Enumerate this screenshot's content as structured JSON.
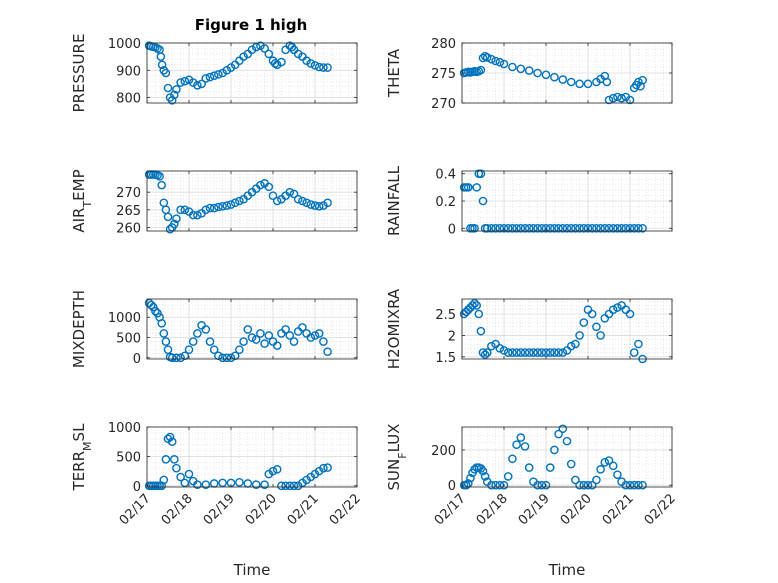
{
  "figure": {
    "title": "Figure 1 high"
  },
  "chart_data": [
    {
      "type": "scatter",
      "title": "Figure 1 high",
      "ylabel": "PRESSURE",
      "xlabel": "",
      "ylim": [
        780,
        1000
      ],
      "yticks": [
        "800",
        "900",
        "1000"
      ],
      "ytick_values": [
        800,
        900,
        1000
      ],
      "xlim": [
        0,
        5
      ],
      "grid": true,
      "marker": "circle",
      "color": "#0072BD",
      "x": [
        0.05,
        0.1,
        0.15,
        0.2,
        0.25,
        0.3,
        0.33,
        0.36,
        0.4,
        0.45,
        0.5,
        0.55,
        0.6,
        0.65,
        0.7,
        0.8,
        0.9,
        1.0,
        1.1,
        1.2,
        1.3,
        1.4,
        1.5,
        1.6,
        1.7,
        1.8,
        1.9,
        2.0,
        2.1,
        2.2,
        2.3,
        2.4,
        2.5,
        2.6,
        2.7,
        2.8,
        2.9,
        3.0,
        3.05,
        3.1,
        3.2,
        3.3,
        3.4,
        3.45,
        3.5,
        3.6,
        3.7,
        3.8,
        3.9,
        4.0,
        4.1,
        4.2,
        4.3
      ],
      "y": [
        990,
        988,
        986,
        984,
        980,
        975,
        950,
        920,
        900,
        890,
        835,
        800,
        790,
        810,
        830,
        855,
        860,
        865,
        855,
        845,
        850,
        870,
        875,
        880,
        885,
        890,
        900,
        910,
        920,
        935,
        950,
        960,
        975,
        985,
        990,
        980,
        960,
        935,
        925,
        920,
        930,
        975,
        990,
        985,
        975,
        960,
        950,
        935,
        925,
        918,
        912,
        910,
        910
      ]
    },
    {
      "type": "scatter",
      "ylabel": "THETA",
      "xlabel": "",
      "ylim": [
        270,
        280
      ],
      "yticks": [
        "270",
        "275",
        "280"
      ],
      "ytick_values": [
        270,
        275,
        280
      ],
      "xlim": [
        0,
        5
      ],
      "grid": true,
      "marker": "circle",
      "color": "#0072BD",
      "x": [
        0.05,
        0.1,
        0.15,
        0.2,
        0.25,
        0.3,
        0.35,
        0.4,
        0.45,
        0.5,
        0.55,
        0.6,
        0.7,
        0.8,
        0.9,
        1.0,
        1.2,
        1.4,
        1.6,
        1.8,
        2.0,
        2.2,
        2.4,
        2.6,
        2.8,
        3.0,
        3.2,
        3.3,
        3.4,
        3.45,
        3.5,
        3.6,
        3.7,
        3.8,
        3.9,
        4.0,
        4.1,
        4.15,
        4.2,
        4.25,
        4.3
      ],
      "y": [
        275,
        275.1,
        275.2,
        275.1,
        275.2,
        275.3,
        275.2,
        275.3,
        275.5,
        277.5,
        277.8,
        277.6,
        277.3,
        277,
        276.8,
        276.5,
        276,
        275.7,
        275.4,
        275,
        274.7,
        274.3,
        273.9,
        273.5,
        273.2,
        273.2,
        273.5,
        274,
        274.5,
        273.5,
        270.5,
        270.8,
        271,
        270.8,
        271,
        270.5,
        272.5,
        273,
        273.5,
        272.8,
        273.8
      ]
    },
    {
      "type": "scatter",
      "ylabel": "AIR_TEMP",
      "xlabel": "",
      "ylim": [
        259,
        276
      ],
      "yticks": [
        "260",
        "265",
        "270"
      ],
      "ytick_values": [
        260,
        265,
        270
      ],
      "xlim": [
        0,
        5
      ],
      "grid": true,
      "marker": "circle",
      "color": "#0072BD",
      "x": [
        0.05,
        0.1,
        0.15,
        0.2,
        0.25,
        0.3,
        0.35,
        0.4,
        0.45,
        0.5,
        0.55,
        0.6,
        0.65,
        0.7,
        0.8,
        0.9,
        1.0,
        1.1,
        1.2,
        1.3,
        1.4,
        1.5,
        1.6,
        1.7,
        1.8,
        1.9,
        2.0,
        2.1,
        2.2,
        2.3,
        2.4,
        2.5,
        2.6,
        2.7,
        2.8,
        2.9,
        3.0,
        3.1,
        3.2,
        3.3,
        3.4,
        3.5,
        3.6,
        3.7,
        3.8,
        3.9,
        4.0,
        4.1,
        4.2,
        4.3
      ],
      "y": [
        275,
        275,
        275,
        275,
        274.8,
        274.5,
        272,
        267,
        265,
        263,
        259.5,
        260,
        261,
        262.5,
        265,
        265,
        264.5,
        263.5,
        263.5,
        264,
        265,
        265.5,
        265.5,
        265.8,
        266,
        266.2,
        266.5,
        267,
        267.5,
        268,
        269,
        270,
        271,
        272,
        272.5,
        271.5,
        269,
        267.5,
        268,
        269,
        270,
        269.5,
        268,
        267.5,
        267,
        266.5,
        266.2,
        266,
        266.2,
        267
      ]
    },
    {
      "type": "scatter",
      "ylabel": "RAINFALL",
      "xlabel": "",
      "ylim": [
        -0.02,
        0.42
      ],
      "yticks": [
        "0",
        "0.2",
        "0.4"
      ],
      "ytick_values": [
        0,
        0.2,
        0.4
      ],
      "xlim": [
        0,
        5
      ],
      "grid": true,
      "marker": "circle",
      "color": "#0072BD",
      "x": [
        0.05,
        0.1,
        0.15,
        0.2,
        0.25,
        0.3,
        0.35,
        0.4,
        0.45,
        0.5,
        0.55,
        0.6,
        0.7,
        0.8,
        0.9,
        1.0,
        1.1,
        1.2,
        1.3,
        1.4,
        1.5,
        1.6,
        1.7,
        1.8,
        1.9,
        2.0,
        2.1,
        2.2,
        2.3,
        2.4,
        2.5,
        2.6,
        2.7,
        2.8,
        2.9,
        3.0,
        3.1,
        3.2,
        3.3,
        3.4,
        3.5,
        3.6,
        3.7,
        3.8,
        3.9,
        4.0,
        4.1,
        4.2,
        4.3
      ],
      "y": [
        0.3,
        0.3,
        0.3,
        0,
        0,
        0,
        0.3,
        0.4,
        0.4,
        0.2,
        0,
        0,
        0,
        0,
        0,
        0,
        0,
        0,
        0,
        0,
        0,
        0,
        0,
        0,
        0,
        0,
        0,
        0,
        0,
        0,
        0,
        0,
        0,
        0,
        0,
        0,
        0,
        0,
        0,
        0,
        0,
        0,
        0,
        0,
        0,
        0,
        0,
        0,
        0
      ]
    },
    {
      "type": "scatter",
      "ylabel": "MIXDEPTH",
      "xlabel": "",
      "ylim": [
        -30,
        1450
      ],
      "yticks": [
        "0",
        "500",
        "1000"
      ],
      "ytick_values": [
        0,
        500,
        1000
      ],
      "xlim": [
        0,
        5
      ],
      "grid": true,
      "marker": "circle",
      "color": "#0072BD",
      "x": [
        0.05,
        0.1,
        0.15,
        0.2,
        0.25,
        0.3,
        0.35,
        0.4,
        0.45,
        0.5,
        0.55,
        0.6,
        0.7,
        0.8,
        0.9,
        1.0,
        1.1,
        1.2,
        1.3,
        1.4,
        1.5,
        1.6,
        1.7,
        1.8,
        1.9,
        2.0,
        2.1,
        2.2,
        2.3,
        2.4,
        2.5,
        2.6,
        2.7,
        2.8,
        2.9,
        3.0,
        3.1,
        3.2,
        3.3,
        3.4,
        3.5,
        3.6,
        3.7,
        3.8,
        3.9,
        4.0,
        4.1,
        4.2,
        4.3
      ],
      "y": [
        1350,
        1300,
        1250,
        1150,
        1100,
        1000,
        850,
        600,
        400,
        200,
        20,
        0,
        0,
        0,
        50,
        200,
        400,
        600,
        800,
        700,
        400,
        200,
        50,
        0,
        0,
        0,
        50,
        200,
        400,
        700,
        500,
        450,
        600,
        350,
        550,
        400,
        300,
        600,
        700,
        550,
        400,
        650,
        750,
        600,
        500,
        550,
        600,
        400,
        150
      ]
    },
    {
      "type": "scatter",
      "ylabel": "H2OMIXRA",
      "xlabel": "",
      "ylim": [
        1.45,
        2.85
      ],
      "yticks": [
        "1.5",
        "2",
        "2.5"
      ],
      "ytick_values": [
        1.5,
        2,
        2.5
      ],
      "xlim": [
        0,
        5
      ],
      "grid": true,
      "marker": "circle",
      "color": "#0072BD",
      "x": [
        0.05,
        0.1,
        0.15,
        0.2,
        0.25,
        0.3,
        0.35,
        0.4,
        0.45,
        0.5,
        0.55,
        0.6,
        0.7,
        0.8,
        0.9,
        1.0,
        1.1,
        1.2,
        1.3,
        1.4,
        1.5,
        1.6,
        1.7,
        1.8,
        1.9,
        2.0,
        2.1,
        2.2,
        2.3,
        2.4,
        2.5,
        2.6,
        2.7,
        2.8,
        2.9,
        3.0,
        3.1,
        3.2,
        3.3,
        3.4,
        3.5,
        3.6,
        3.7,
        3.8,
        3.9,
        4.0,
        4.1,
        4.2,
        4.3
      ],
      "y": [
        2.5,
        2.55,
        2.6,
        2.65,
        2.7,
        2.75,
        2.7,
        2.5,
        2.1,
        1.6,
        1.55,
        1.6,
        1.75,
        1.8,
        1.7,
        1.65,
        1.6,
        1.6,
        1.6,
        1.6,
        1.6,
        1.6,
        1.6,
        1.6,
        1.6,
        1.6,
        1.6,
        1.6,
        1.6,
        1.6,
        1.65,
        1.75,
        1.8,
        2.0,
        2.3,
        2.6,
        2.5,
        2.2,
        2.0,
        2.4,
        2.5,
        2.6,
        2.65,
        2.7,
        2.6,
        2.5,
        1.6,
        1.8,
        1.45
      ]
    },
    {
      "type": "scatter",
      "ylabel": "TERR_MSL",
      "xlabel": "Time",
      "ylim": [
        -20,
        1000
      ],
      "yticks": [
        "0",
        "500",
        "1000"
      ],
      "ytick_values": [
        0,
        500,
        1000
      ],
      "xlim": [
        0,
        5
      ],
      "xticks": [
        "02/17",
        "02/18",
        "02/19",
        "02/20",
        "02/21",
        "02/22"
      ],
      "xtick_values": [
        0,
        1,
        2,
        3,
        4,
        5
      ],
      "grid": true,
      "marker": "circle",
      "color": "#0072BD",
      "x": [
        0.05,
        0.1,
        0.15,
        0.2,
        0.25,
        0.3,
        0.35,
        0.4,
        0.45,
        0.5,
        0.55,
        0.6,
        0.65,
        0.7,
        0.8,
        0.9,
        1.0,
        1.1,
        1.2,
        1.4,
        1.6,
        1.8,
        2.0,
        2.2,
        2.4,
        2.6,
        2.8,
        2.9,
        3.0,
        3.1,
        3.2,
        3.3,
        3.4,
        3.5,
        3.6,
        3.7,
        3.8,
        3.9,
        4.0,
        4.1,
        4.2,
        4.3
      ],
      "y": [
        0,
        0,
        0,
        0,
        0,
        0,
        0,
        100,
        450,
        800,
        830,
        750,
        450,
        300,
        150,
        50,
        200,
        80,
        20,
        20,
        40,
        50,
        50,
        60,
        40,
        20,
        20,
        200,
        250,
        280,
        0,
        0,
        0,
        0,
        0,
        50,
        100,
        150,
        200,
        250,
        300,
        310
      ]
    },
    {
      "type": "scatter",
      "ylabel": "SUN_FLUX",
      "xlabel": "Time",
      "ylim": [
        -10,
        330
      ],
      "yticks": [
        "0",
        "200"
      ],
      "ytick_values": [
        0,
        200
      ],
      "xlim": [
        0,
        5
      ],
      "xticks": [
        "02/17",
        "02/18",
        "02/19",
        "02/20",
        "02/21",
        "02/22"
      ],
      "xtick_values": [
        0,
        1,
        2,
        3,
        4,
        5
      ],
      "grid": true,
      "marker": "circle",
      "color": "#0072BD",
      "x": [
        0.05,
        0.1,
        0.15,
        0.2,
        0.25,
        0.3,
        0.35,
        0.4,
        0.45,
        0.5,
        0.55,
        0.6,
        0.7,
        0.8,
        0.9,
        1.0,
        1.1,
        1.2,
        1.3,
        1.4,
        1.5,
        1.6,
        1.7,
        1.8,
        1.9,
        2.0,
        2.1,
        2.2,
        2.3,
        2.4,
        2.5,
        2.6,
        2.7,
        2.8,
        2.9,
        3.0,
        3.1,
        3.2,
        3.3,
        3.4,
        3.5,
        3.6,
        3.7,
        3.8,
        3.9,
        4.0,
        4.1,
        4.2,
        4.3
      ],
      "y": [
        0,
        0,
        10,
        40,
        70,
        90,
        100,
        100,
        95,
        80,
        50,
        20,
        0,
        0,
        0,
        0,
        50,
        150,
        230,
        270,
        220,
        100,
        20,
        0,
        0,
        0,
        100,
        200,
        290,
        320,
        250,
        120,
        30,
        0,
        0,
        0,
        0,
        30,
        90,
        130,
        140,
        110,
        60,
        20,
        0,
        0,
        0,
        0,
        0
      ]
    }
  ]
}
